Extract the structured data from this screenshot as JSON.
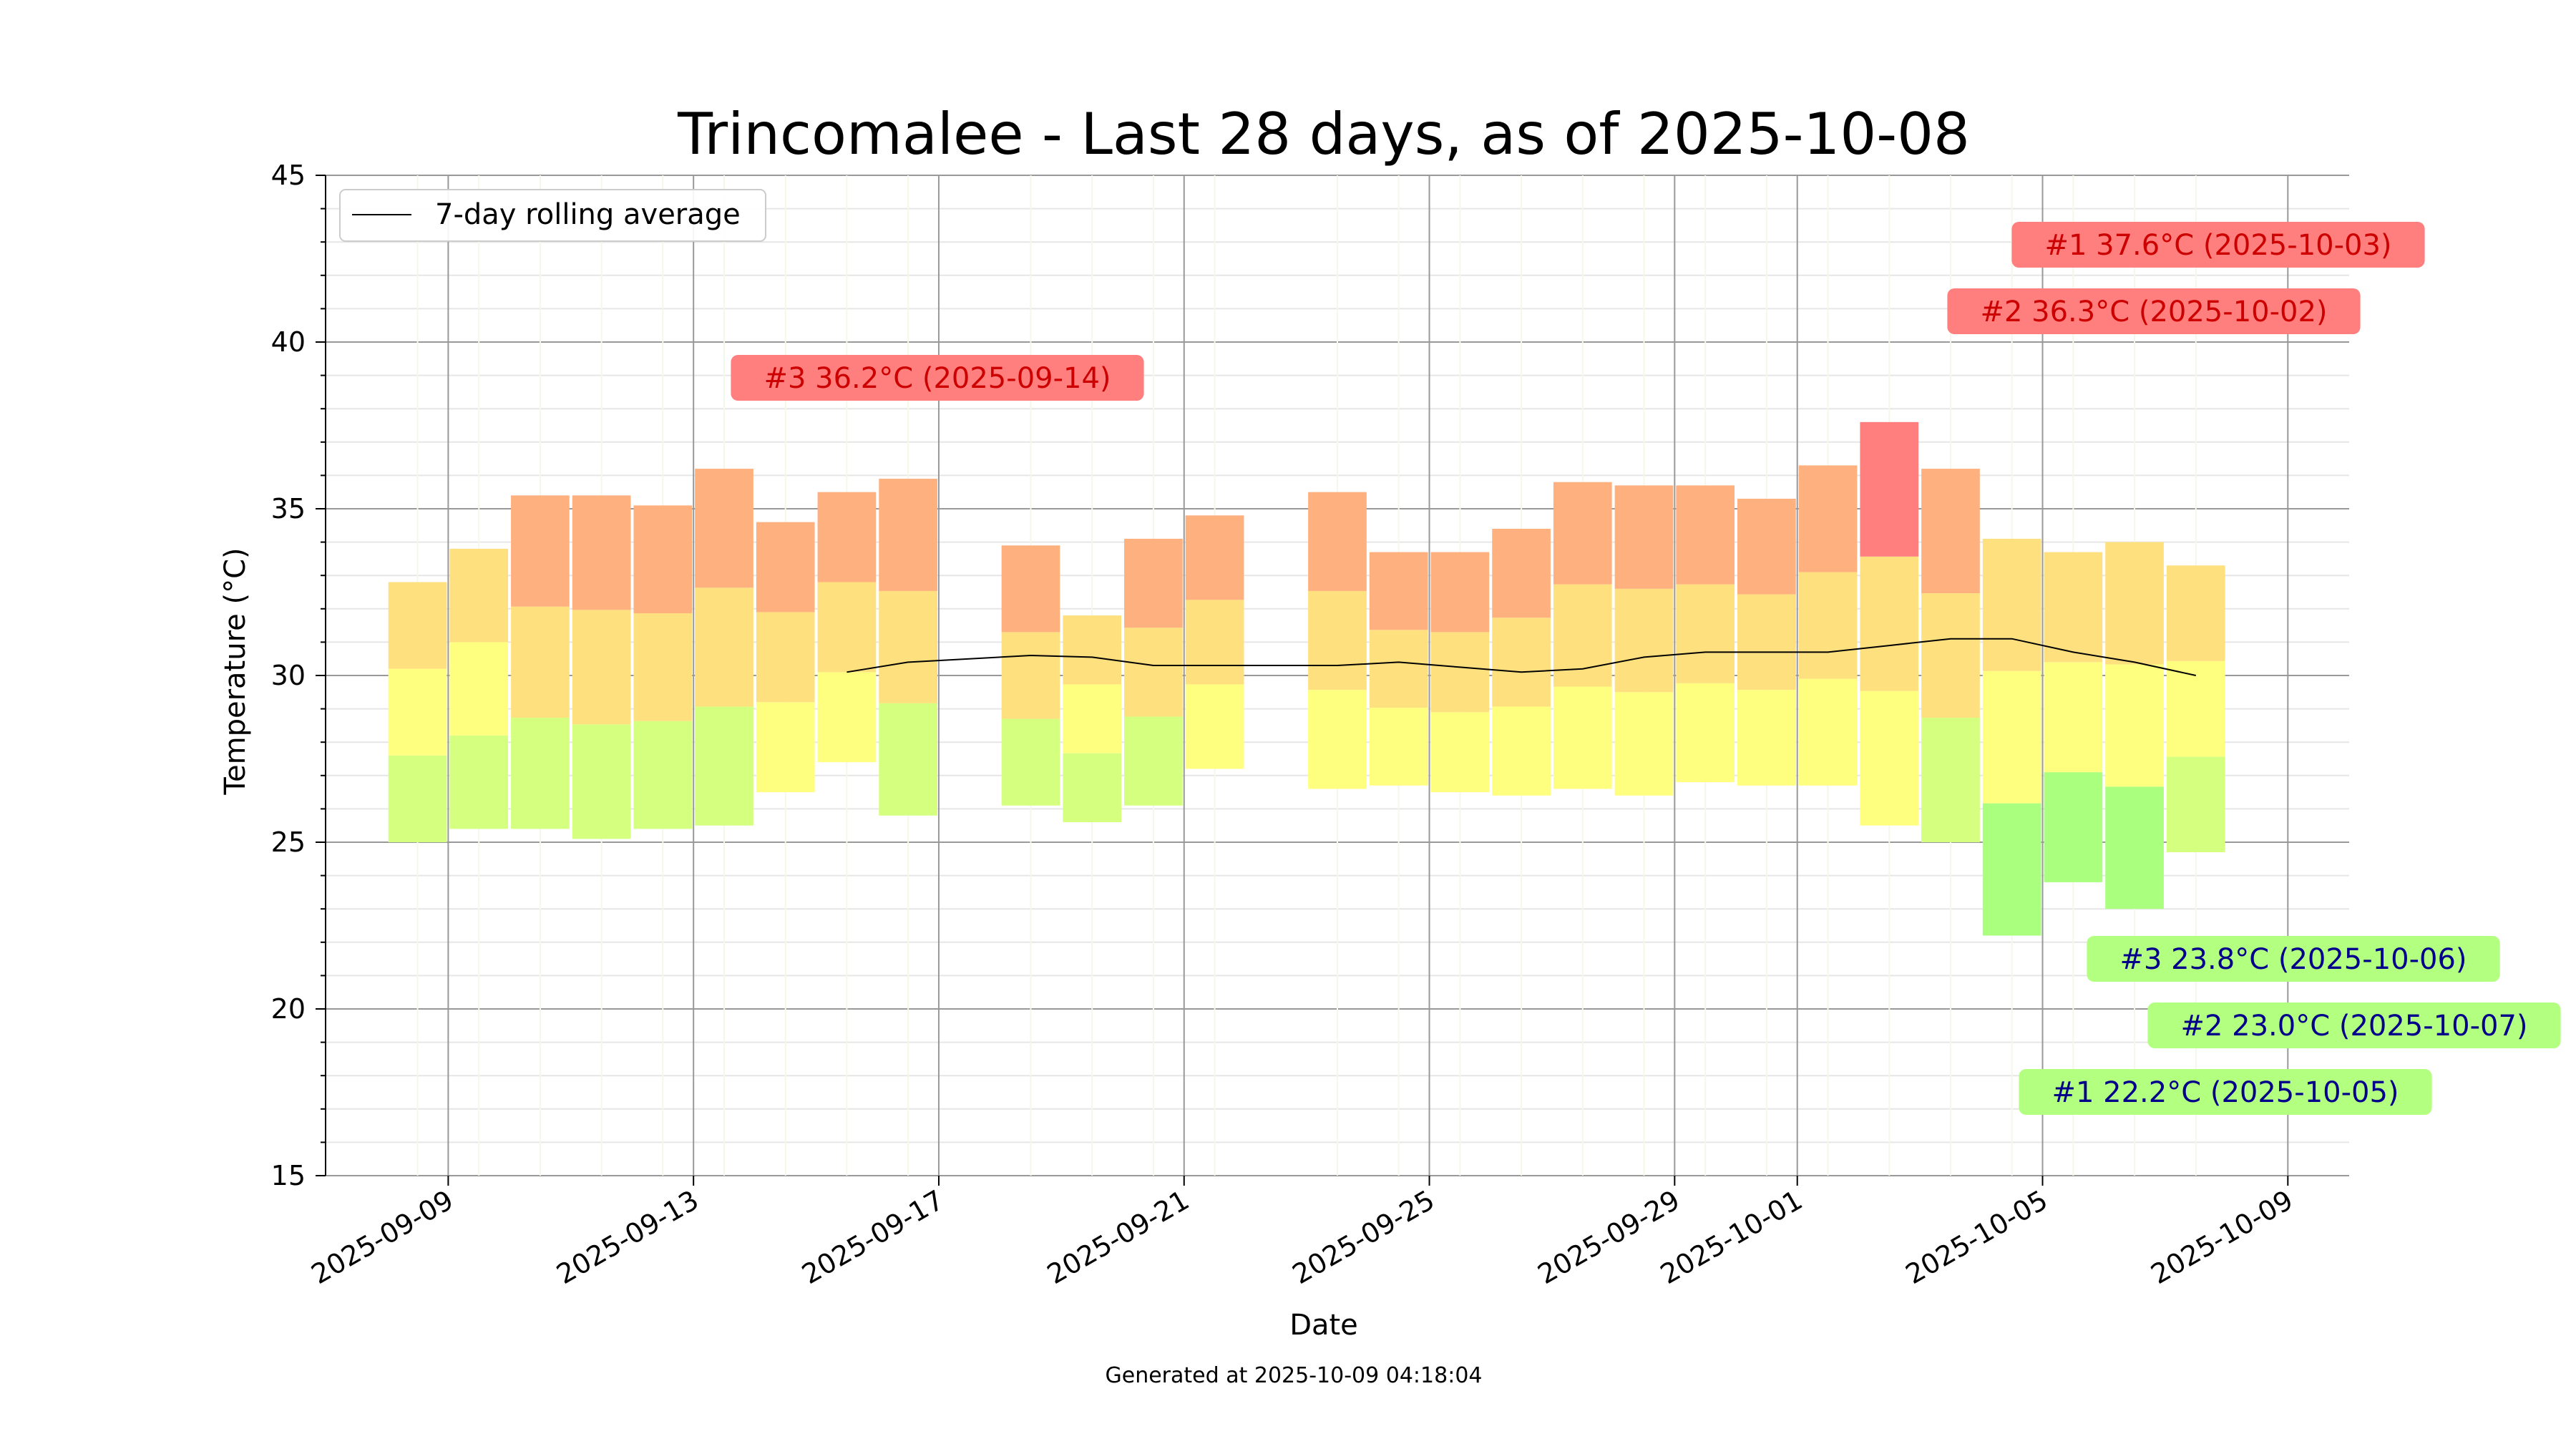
{
  "chart_data": {
    "type": "bar",
    "title": "Trincomalee - Last 28 days, as of 2025-10-08",
    "xlabel": "Date",
    "ylabel": "Temperature (°C)",
    "footer": "Generated at 2025-10-09 04:18:04",
    "legend": {
      "label": "7-day rolling average",
      "position": "top-left"
    },
    "ylim": [
      15,
      45
    ],
    "y_ticks": [
      15,
      20,
      25,
      30,
      35,
      40,
      45
    ],
    "y_tick_labels": [
      "15",
      "20",
      "25",
      "30",
      "35",
      "40",
      "45"
    ],
    "xlim": [
      "2025-09-07",
      "2025-10-10"
    ],
    "x_ticks": [
      "2025-09-09",
      "2025-09-13",
      "2025-09-17",
      "2025-09-21",
      "2025-09-25",
      "2025-09-29",
      "2025-10-01",
      "2025-10-05",
      "2025-10-09"
    ],
    "grid": true,
    "daily": [
      {
        "date": "2025-09-08",
        "min": 25.0,
        "max": 32.8
      },
      {
        "date": "2025-09-09",
        "min": 25.4,
        "max": 33.8
      },
      {
        "date": "2025-09-10",
        "min": 25.4,
        "max": 35.4
      },
      {
        "date": "2025-09-11",
        "min": 25.1,
        "max": 35.4
      },
      {
        "date": "2025-09-12",
        "min": 25.4,
        "max": 35.1
      },
      {
        "date": "2025-09-13",
        "min": 25.5,
        "max": 36.2
      },
      {
        "date": "2025-09-14",
        "min": 26.5,
        "max": 34.6
      },
      {
        "date": "2025-09-15",
        "min": 27.4,
        "max": 35.5
      },
      {
        "date": "2025-09-16",
        "min": 25.8,
        "max": 35.9
      },
      {
        "date": "2025-09-18",
        "min": 26.1,
        "max": 33.9
      },
      {
        "date": "2025-09-19",
        "min": 25.6,
        "max": 31.8
      },
      {
        "date": "2025-09-20",
        "min": 26.1,
        "max": 34.1
      },
      {
        "date": "2025-09-21",
        "min": 27.2,
        "max": 34.8
      },
      {
        "date": "2025-09-23",
        "min": 26.6,
        "max": 35.5
      },
      {
        "date": "2025-09-24",
        "min": 26.7,
        "max": 33.7
      },
      {
        "date": "2025-09-25",
        "min": 26.5,
        "max": 33.7
      },
      {
        "date": "2025-09-26",
        "min": 26.4,
        "max": 34.4
      },
      {
        "date": "2025-09-27",
        "min": 26.6,
        "max": 35.8
      },
      {
        "date": "2025-09-28",
        "min": 26.4,
        "max": 35.7
      },
      {
        "date": "2025-09-29",
        "min": 26.8,
        "max": 35.7
      },
      {
        "date": "2025-09-30",
        "min": 26.7,
        "max": 35.3
      },
      {
        "date": "2025-10-01",
        "min": 26.7,
        "max": 36.3
      },
      {
        "date": "2025-10-02",
        "min": 25.5,
        "max": 37.6
      },
      {
        "date": "2025-10-03",
        "min": 25.0,
        "max": 36.2
      },
      {
        "date": "2025-10-04",
        "min": 22.2,
        "max": 34.1
      },
      {
        "date": "2025-10-05",
        "min": 23.8,
        "max": 33.7
      },
      {
        "date": "2025-10-06",
        "min": 23.0,
        "max": 34.0
      },
      {
        "date": "2025-10-07",
        "min": 24.7,
        "max": 33.3
      }
    ],
    "rolling_average": [
      {
        "date": "2025-09-15",
        "value": 30.1
      },
      {
        "date": "2025-09-16",
        "value": 30.4
      },
      {
        "date": "2025-09-18",
        "value": 30.6
      },
      {
        "date": "2025-09-19",
        "value": 30.55
      },
      {
        "date": "2025-09-20",
        "value": 30.3
      },
      {
        "date": "2025-09-21",
        "value": 30.3
      },
      {
        "date": "2025-09-23",
        "value": 30.3
      },
      {
        "date": "2025-09-24",
        "value": 30.4
      },
      {
        "date": "2025-09-25",
        "value": 30.25
      },
      {
        "date": "2025-09-26",
        "value": 30.1
      },
      {
        "date": "2025-09-27",
        "value": 30.2
      },
      {
        "date": "2025-09-28",
        "value": 30.55
      },
      {
        "date": "2025-09-29",
        "value": 30.7
      },
      {
        "date": "2025-09-30",
        "value": 30.7
      },
      {
        "date": "2025-10-01",
        "value": 30.7
      },
      {
        "date": "2025-10-02",
        "value": 30.9
      },
      {
        "date": "2025-10-03",
        "value": 31.1
      },
      {
        "date": "2025-10-04",
        "value": 31.1
      },
      {
        "date": "2025-10-05",
        "value": 30.7
      },
      {
        "date": "2025-10-06",
        "value": 30.4
      },
      {
        "date": "2025-10-07",
        "value": 30.0
      }
    ],
    "annotations": [
      {
        "text": "#1 37.6°C (2025-10-03)",
        "kind": "high"
      },
      {
        "text": "#2 36.3°C (2025-10-02)",
        "kind": "high"
      },
      {
        "text": "#3 36.2°C (2025-09-14)",
        "kind": "high"
      },
      {
        "text": "#3 23.8°C (2025-10-06)",
        "kind": "low"
      },
      {
        "text": "#2 23.0°C (2025-10-07)",
        "kind": "low"
      },
      {
        "text": "#1 22.2°C (2025-10-05)",
        "kind": "low"
      }
    ]
  },
  "colors": {
    "band_hot": "#ff7f7f",
    "band_warm": "#ffb07f",
    "band_mild": "#ffe07f",
    "band_pale": "#ffff7f",
    "band_cool": "#d4ff7f",
    "band_cold": "#aaff7f",
    "high_label_bg": "#ff7f7f",
    "high_label_text": "#cc0000",
    "low_label_bg": "#b3ff80",
    "low_label_text": "#00008b",
    "rolling_line": "#000000",
    "grid_major": "#999999",
    "grid_minor": "#e6e6e6"
  }
}
